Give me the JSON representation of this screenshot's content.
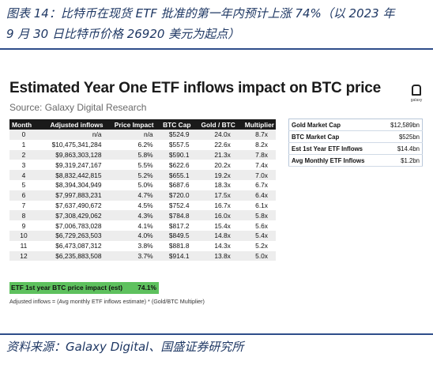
{
  "caption": {
    "line1": "图表 14：比特币在现货 ETF 批准的第一年内预计上涨 74%（以 2023 年",
    "line2": "9 月 30 日比特币价格 26920 美元为起点）"
  },
  "chart": {
    "title": "Estimated Year One ETF inflows impact on BTC price",
    "subtitle": "Source: Galaxy Digital Research",
    "logo_text": "galaxy"
  },
  "table": {
    "headers": [
      "Month",
      "Adjusted inflows",
      "Price Impact",
      "BTC Cap",
      "Gold / BTC",
      "Multiplier"
    ],
    "rows": [
      [
        "0",
        "n/a",
        "n/a",
        "$524.9",
        "24.0x",
        "8.7x"
      ],
      [
        "1",
        "$10,475,341,284",
        "6.2%",
        "$557.5",
        "22.6x",
        "8.2x"
      ],
      [
        "2",
        "$9,863,303,128",
        "5.8%",
        "$590.1",
        "21.3x",
        "7.8x"
      ],
      [
        "3",
        "$9,319,247,167",
        "5.5%",
        "$622.6",
        "20.2x",
        "7.4x"
      ],
      [
        "4",
        "$8,832,442,815",
        "5.2%",
        "$655.1",
        "19.2x",
        "7.0x"
      ],
      [
        "5",
        "$8,394,304,949",
        "5.0%",
        "$687.6",
        "18.3x",
        "6.7x"
      ],
      [
        "6",
        "$7,997,883,231",
        "4.7%",
        "$720.0",
        "17.5x",
        "6.4x"
      ],
      [
        "7",
        "$7,637,490,672",
        "4.5%",
        "$752.4",
        "16.7x",
        "6.1x"
      ],
      [
        "8",
        "$7,308,429,062",
        "4.3%",
        "$784.8",
        "16.0x",
        "5.8x"
      ],
      [
        "9",
        "$7,006,783,028",
        "4.1%",
        "$817.2",
        "15.4x",
        "5.6x"
      ],
      [
        "10",
        "$6,729,263,503",
        "4.0%",
        "$849.5",
        "14.8x",
        "5.4x"
      ],
      [
        "11",
        "$6,473,087,312",
        "3.8%",
        "$881.8",
        "14.3x",
        "5.2x"
      ],
      [
        "12",
        "$6,235,883,508",
        "3.7%",
        "$914.1",
        "13.8x",
        "5.0x"
      ]
    ],
    "summary_label": "ETF 1st year BTC price impact (est)",
    "summary_value": "74.1%",
    "note": "Adjusted inflows = (Avg monthly ETF inflows estimate) * (Gold/BTC Multiplier)"
  },
  "side_table": [
    {
      "label": "Gold Market Cap",
      "value": "$12,589bn"
    },
    {
      "label": "BTC Market Cap",
      "value": "$525bn"
    },
    {
      "label": "Est 1st Year ETF Inflows",
      "value": "$14.4bn"
    },
    {
      "label": "Avg Monthly ETF Inflows",
      "value": "$1.2bn"
    }
  ],
  "source": "资料来源：Galaxy Digital、国盛证券研究所"
}
